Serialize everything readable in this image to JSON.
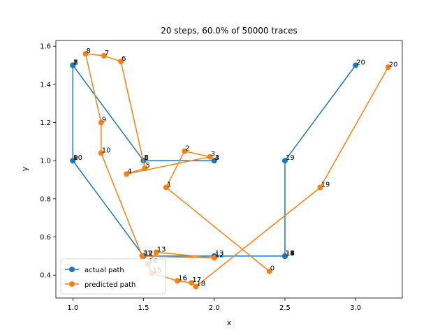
{
  "chart_data": {
    "type": "line",
    "title": "20 steps, 60.0% of 50000 traces",
    "xlabel": "x",
    "ylabel": "y",
    "xlim": [
      0.88,
      3.33
    ],
    "ylim": [
      0.28,
      1.63
    ],
    "xticks": [
      "1.0",
      "1.5",
      "2.0",
      "2.5",
      "3.0"
    ],
    "xtick_values": [
      1.0,
      1.5,
      2.0,
      2.5,
      3.0
    ],
    "yticks": [
      "0.4",
      "0.6",
      "0.8",
      "1.0",
      "1.2",
      "1.4",
      "1.6"
    ],
    "ytick_values": [
      0.4,
      0.6,
      0.8,
      1.0,
      1.2,
      1.4,
      1.6
    ],
    "grid": false,
    "legend_position": "lower-left",
    "series": [
      {
        "name": "actual path",
        "color": "#1f77b4",
        "x": [
          1.0,
          1.0,
          1.5,
          2.0,
          2.0,
          1.5,
          1.5,
          1.0,
          1.0,
          1.0,
          1.0,
          1.5,
          1.5,
          2.0,
          2.5,
          2.5,
          2.5,
          2.5,
          2.5,
          2.5,
          3.0
        ],
        "y": [
          1.0,
          1.5,
          1.0,
          1.0,
          1.0,
          1.0,
          1.0,
          1.5,
          1.5,
          1.0,
          1.0,
          0.5,
          0.5,
          0.5,
          0.5,
          0.5,
          0.5,
          0.5,
          0.5,
          1.0,
          1.5
        ],
        "labels": [
          "0",
          "1",
          "2",
          "3",
          "4",
          "5",
          "6",
          "7",
          "8",
          "9",
          "10",
          "11",
          "12",
          "13",
          "14",
          "15",
          "16",
          "17",
          "18",
          "19",
          "20"
        ]
      },
      {
        "name": "predicted path",
        "color": "#ff7f0e",
        "x": [
          2.39,
          1.66,
          1.79,
          1.97,
          1.38,
          1.51,
          1.34,
          1.22,
          1.09,
          1.2,
          1.2,
          1.49,
          2.0,
          1.59,
          1.53,
          1.56,
          1.74,
          1.84,
          1.87,
          2.75,
          3.23
        ],
        "y": [
          0.42,
          0.86,
          1.05,
          1.02,
          0.93,
          0.96,
          1.52,
          1.55,
          1.56,
          1.2,
          1.04,
          0.5,
          0.49,
          0.52,
          0.46,
          0.41,
          0.37,
          0.36,
          0.34,
          0.86,
          1.49
        ],
        "labels": [
          "0",
          "1",
          "2",
          "3",
          "4",
          "5",
          "6",
          "7",
          "8",
          "9",
          "10",
          "11",
          "12",
          "13",
          "14",
          "15",
          "16",
          "17",
          "18",
          "19",
          "20"
        ]
      }
    ]
  }
}
